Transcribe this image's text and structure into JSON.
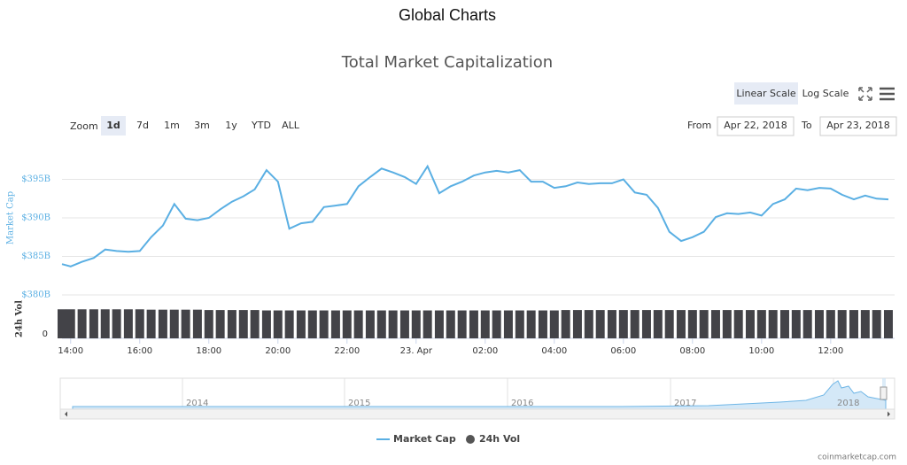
{
  "page_title": "Global Charts",
  "controls": {
    "zoom_label": "Zoom",
    "zoom_buttons": [
      "1d",
      "7d",
      "1m",
      "3m",
      "1y",
      "YTD",
      "ALL"
    ],
    "scale_buttons": [
      "Linear Scale",
      "Log Scale"
    ],
    "from_label": "From",
    "from": "Apr 22, 2018",
    "to_label": "To",
    "to": "Apr 23, 2018"
  },
  "navigator": {
    "labels": [
      "2014",
      "2015",
      "2016",
      "2017",
      "2018"
    ]
  },
  "credits": "coinmarketcap.com",
  "chart_data": {
    "type": "line",
    "title": "Total Market Capitalization",
    "y_label": "Market Cap",
    "y2_label": "24h Vol",
    "x": [
      13.75,
      14.0,
      14.33,
      14.67,
      15.0,
      15.33,
      15.67,
      16.0,
      16.33,
      16.67,
      17.0,
      17.33,
      17.67,
      18.0,
      18.33,
      18.67,
      19.0,
      19.33,
      19.67,
      20.0,
      20.33,
      20.67,
      21.0,
      21.33,
      21.67,
      22.0,
      22.33,
      22.67,
      23.0,
      23.33,
      23.67,
      24.0,
      24.33,
      24.67,
      25.0,
      25.33,
      25.67,
      26.0,
      26.33,
      26.67,
      27.0,
      27.33,
      27.67,
      28.0,
      28.33,
      28.67,
      29.0,
      29.33,
      29.67,
      30.0,
      30.33,
      30.67,
      31.0,
      31.33,
      31.67,
      32.0,
      32.33,
      32.67,
      33.0,
      33.33,
      33.67,
      34.0,
      34.33,
      34.67,
      35.0,
      35.33,
      35.67,
      36.0,
      36.33,
      36.67,
      37.0,
      37.33,
      37.67
    ],
    "series": [
      {
        "name": "Market Cap",
        "color": "#5aafe3",
        "values": [
          384.0,
          383.7,
          384.3,
          384.8,
          385.9,
          385.7,
          385.6,
          385.7,
          387.5,
          389.0,
          391.8,
          389.9,
          389.7,
          390.0,
          391.1,
          392.1,
          392.8,
          393.7,
          396.2,
          394.7,
          388.6,
          389.3,
          389.5,
          391.4,
          391.6,
          391.8,
          394.1,
          395.3,
          396.4,
          395.9,
          395.3,
          394.4,
          396.7,
          393.2,
          394.1,
          394.7,
          395.5,
          395.9,
          396.1,
          395.9,
          396.2,
          394.7,
          394.7,
          393.9,
          394.1,
          394.6,
          394.4,
          394.5,
          394.5,
          395.0,
          393.3,
          393.0,
          391.3,
          388.2,
          387.0,
          387.5,
          388.2,
          390.1,
          390.6,
          390.5,
          390.7,
          390.3,
          391.8,
          392.4,
          393.8,
          393.6,
          393.9,
          393.8,
          393.0,
          392.4,
          392.9,
          392.5,
          392.4
        ]
      },
      {
        "name": "24h Vol",
        "color": "#434348",
        "axis": "y2",
        "values": [
          7.8,
          7.8,
          7.8,
          7.8,
          7.8,
          7.8,
          7.8,
          7.8,
          7.7,
          7.7,
          7.7,
          7.7,
          7.7,
          7.6,
          7.6,
          7.6,
          7.6,
          7.6,
          7.5,
          7.5,
          7.5,
          7.5,
          7.5,
          7.5,
          7.5,
          7.5,
          7.5,
          7.5,
          7.5,
          7.5,
          7.5,
          7.5,
          7.5,
          7.5,
          7.5,
          7.5,
          7.5,
          7.5,
          7.5,
          7.5,
          7.5,
          7.5,
          7.5,
          7.5,
          7.6,
          7.6,
          7.6,
          7.6,
          7.6,
          7.6,
          7.6,
          7.6,
          7.6,
          7.6,
          7.6,
          7.6,
          7.6,
          7.6,
          7.6,
          7.6,
          7.6,
          7.6,
          7.6,
          7.6,
          7.6,
          7.6,
          7.6,
          7.6,
          7.6,
          7.6,
          7.6,
          7.6,
          7.6
        ]
      }
    ],
    "xlim": [
      13.75,
      37.85
    ],
    "xticks": [
      {
        "value": 14,
        "label": "14:00"
      },
      {
        "value": 16,
        "label": "16:00"
      },
      {
        "value": 18,
        "label": "18:00"
      },
      {
        "value": 20,
        "label": "20:00"
      },
      {
        "value": 22,
        "label": "22:00"
      },
      {
        "value": 24,
        "label": "23. Apr"
      },
      {
        "value": 26,
        "label": "02:00"
      },
      {
        "value": 28,
        "label": "04:00"
      },
      {
        "value": 30,
        "label": "06:00"
      },
      {
        "value": 32,
        "label": "08:00"
      },
      {
        "value": 34,
        "label": "10:00"
      },
      {
        "value": 36,
        "label": "12:00"
      }
    ],
    "ylim": [
      380,
      400
    ],
    "yticks": [
      {
        "value": 380,
        "label": "$380B"
      },
      {
        "value": 385,
        "label": "$385B"
      },
      {
        "value": 390,
        "label": "$390B"
      },
      {
        "value": 395,
        "label": "$395B"
      }
    ],
    "y2lim": [
      0,
      10
    ],
    "y2ticks": [
      0
    ],
    "grid": true
  }
}
